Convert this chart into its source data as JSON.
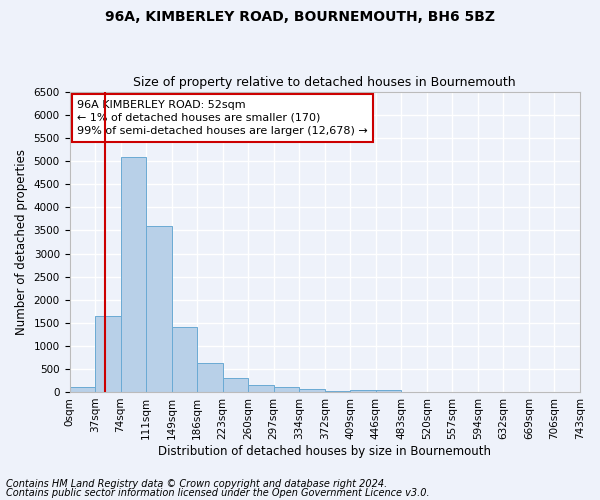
{
  "title": "96A, KIMBERLEY ROAD, BOURNEMOUTH, BH6 5BZ",
  "subtitle": "Size of property relative to detached houses in Bournemouth",
  "xlabel": "Distribution of detached houses by size in Bournemouth",
  "ylabel": "Number of detached properties",
  "footer_line1": "Contains HM Land Registry data © Crown copyright and database right 2024.",
  "footer_line2": "Contains public sector information licensed under the Open Government Licence v3.0.",
  "bin_labels": [
    "0sqm",
    "37sqm",
    "74sqm",
    "111sqm",
    "149sqm",
    "186sqm",
    "223sqm",
    "260sqm",
    "297sqm",
    "334sqm",
    "372sqm",
    "409sqm",
    "446sqm",
    "483sqm",
    "520sqm",
    "557sqm",
    "594sqm",
    "632sqm",
    "669sqm",
    "706sqm",
    "743sqm"
  ],
  "bar_heights": [
    100,
    1650,
    5100,
    3600,
    1400,
    620,
    310,
    155,
    100,
    55,
    30,
    50,
    50,
    0,
    0,
    0,
    0,
    0,
    0,
    0
  ],
  "bar_color": "#b8d0e8",
  "bar_edge_color": "#6aaad4",
  "red_line_color": "#cc0000",
  "annotation_box_text": "96A KIMBERLEY ROAD: 52sqm\n← 1% of detached houses are smaller (170)\n99% of semi-detached houses are larger (12,678) →",
  "ylim": [
    0,
    6500
  ],
  "yticks": [
    0,
    500,
    1000,
    1500,
    2000,
    2500,
    3000,
    3500,
    4000,
    4500,
    5000,
    5500,
    6000,
    6500
  ],
  "bg_color": "#eef2fa",
  "plot_bg_color": "#eef2fa",
  "grid_color": "#ffffff",
  "title_fontsize": 10,
  "subtitle_fontsize": 9,
  "axis_label_fontsize": 8.5,
  "tick_fontsize": 7.5,
  "annotation_fontsize": 8,
  "footer_fontsize": 7
}
